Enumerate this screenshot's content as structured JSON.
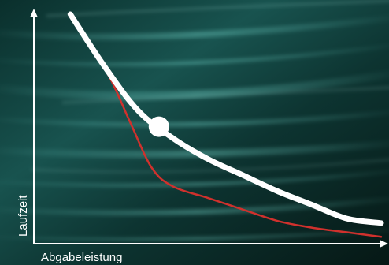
{
  "chart_data": {
    "type": "line",
    "title": "",
    "xlabel": "Abgabeleistung",
    "ylabel": "Laufzeit",
    "xlim": [
      0,
      100
    ],
    "ylim": [
      0,
      100
    ],
    "grid": false,
    "legend": "none",
    "series": [
      {
        "color": "#ffffff",
        "x": [
          10.5,
          20,
          30,
          40,
          50,
          60,
          70,
          80,
          90,
          100
        ],
        "y": [
          100,
          78,
          58,
          46,
          37,
          30,
          23,
          17,
          11,
          9
        ],
        "marker": {
          "x": 36,
          "y": 51
        }
      },
      {
        "color": "#d0312d",
        "x": [
          16,
          22,
          28,
          34,
          40,
          50,
          60,
          70,
          80,
          90,
          100
        ],
        "y": [
          86,
          72,
          52,
          33,
          25,
          20,
          15,
          10,
          7,
          5,
          3
        ]
      }
    ]
  },
  "colors": {
    "background_dark": "#08221f",
    "background_teal": "#2a8b83",
    "axis": "#ffffff"
  }
}
